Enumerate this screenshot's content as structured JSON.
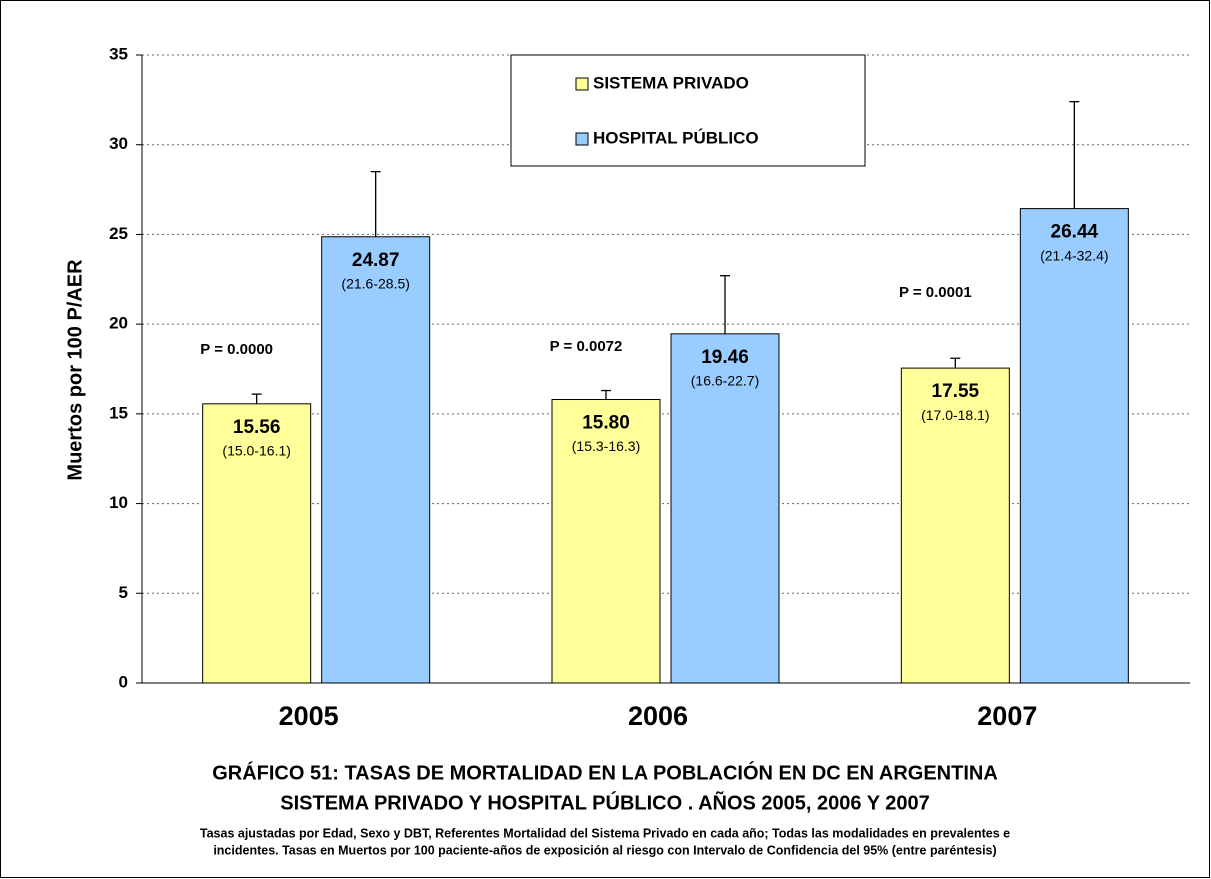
{
  "chart_data": {
    "type": "bar",
    "title": "GRÁFICO 51:  TASAS DE MORTALIDAD  EN  LA POBLACIÓN EN DC EN ARGENTINA",
    "subtitle": "SISTEMA PRIVADO Y HOSPITAL PÚBLICO . AÑOS 2005, 2006 Y 2007",
    "notes": [
      "Tasas ajustadas por Edad, Sexo y DBT, Referentes Mortalidad del Sistema Privado  en cada año; Todas las modalidades en prevalentes e",
      "incidentes. Tasas en Muertos por 100 paciente-años de exposición al riesgo con Intervalo de Confidencia del 95% (entre paréntesis)"
    ],
    "y_label": "Muertos por 100 P/AER",
    "categories": [
      "2005",
      "2006",
      "2007"
    ],
    "series": [
      {
        "name": "SISTEMA PRIVADO",
        "color": "#ffff99",
        "values": [
          15.56,
          15.8,
          17.55
        ],
        "value_labels": [
          "15.56",
          "15.80",
          "17.55"
        ],
        "ci_upper": [
          16.1,
          16.3,
          18.1
        ],
        "ci_labels": [
          "(15.0-16.1)",
          "(15.3-16.3)",
          "(17.0-18.1)"
        ]
      },
      {
        "name": "HOSPITAL PÚBLICO",
        "color": "#99ccff",
        "values": [
          24.87,
          19.46,
          26.44
        ],
        "value_labels": [
          "24.87",
          "19.46",
          "26.44"
        ],
        "ci_upper": [
          28.5,
          22.7,
          32.4
        ],
        "ci_labels": [
          "(21.6-28.5)",
          "(16.6-22.7)",
          "(21.4-32.4)"
        ]
      }
    ],
    "annotations": [
      "P = 0.0000",
      "P = 0.0072",
      "P = 0.0001"
    ],
    "ylim": [
      0,
      35
    ],
    "yticks": [
      0,
      5,
      10,
      15,
      20,
      25,
      30,
      35
    ],
    "grid": true
  }
}
